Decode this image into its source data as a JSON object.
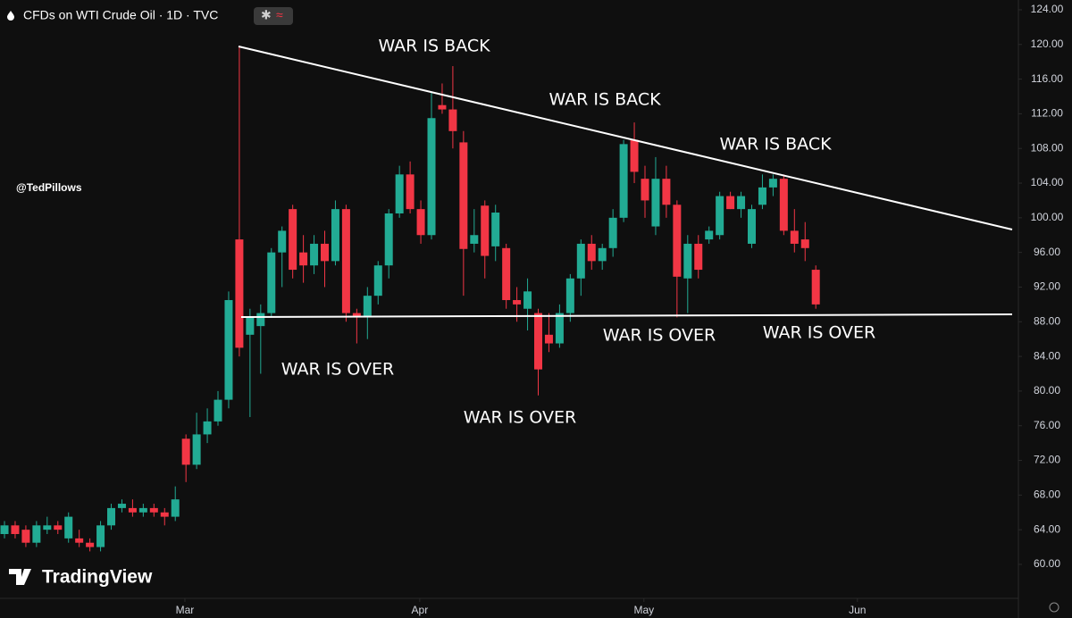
{
  "chart_data": {
    "type": "candlestick",
    "title": "CFDs on WTI Crude Oil · 1D · TVC",
    "watermark": "@TedPillows",
    "brand": "TradingView",
    "annotations": [
      "WAR IS BACK",
      "WAR IS BACK",
      "WAR IS BACK",
      "WAR IS OVER",
      "WAR IS OVER",
      "WAR IS OVER",
      "WAR IS OVER"
    ],
    "up_color": "#22ab94",
    "down_color": "#f23645",
    "x": [
      0,
      1,
      2,
      3,
      4,
      5,
      6,
      7,
      8,
      9,
      10,
      11,
      12,
      13,
      14,
      15,
      16,
      17,
      18,
      19,
      20,
      21,
      22,
      23,
      24,
      25,
      26,
      27,
      28,
      29,
      30,
      31,
      32,
      33,
      34,
      35,
      36,
      37,
      38,
      39,
      40,
      41,
      42,
      43,
      44,
      45,
      46,
      47,
      48,
      49,
      50,
      51,
      52,
      53,
      54,
      55,
      56,
      57,
      58,
      59,
      60,
      61,
      62,
      63,
      64,
      65,
      66,
      67,
      68,
      69,
      70,
      71,
      72,
      73,
      74,
      75,
      76
    ],
    "open": [
      63.5,
      64.5,
      64,
      62.5,
      64,
      64.5,
      63,
      63,
      62.5,
      62,
      64.5,
      66.5,
      66.5,
      66,
      66.5,
      66,
      65.5,
      74.5,
      71.5,
      75,
      76.5,
      79,
      97.5,
      86.5,
      87.5,
      89,
      96,
      101,
      96,
      94.5,
      97,
      95,
      101,
      89,
      88.5,
      91,
      94.5,
      100.5,
      105,
      101,
      98,
      113,
      112.5,
      108.7,
      97,
      101.4,
      96.7,
      96.5,
      90.5,
      89.5,
      89,
      86.5,
      85.5,
      89,
      93,
      97,
      95,
      96.5,
      100,
      109,
      104.5,
      99,
      104.5,
      101.5,
      93,
      97,
      97.5,
      98,
      102.5,
      101,
      97,
      101.5,
      103.5,
      104.5,
      98.5,
      97.5,
      94
    ],
    "high": [
      65,
      65,
      64.5,
      65,
      65.5,
      65,
      66,
      64,
      63,
      65,
      67,
      67.5,
      67.5,
      67,
      67,
      66.5,
      69,
      75,
      77.5,
      78,
      80,
      91.5,
      119.8,
      89.5,
      90,
      96.5,
      99,
      101.5,
      98,
      98,
      98.5,
      102,
      101.5,
      89.5,
      92,
      95,
      101,
      106,
      106.5,
      102,
      114.5,
      115.5,
      117.5,
      110,
      101,
      102,
      101.5,
      97,
      92,
      93,
      89.5,
      89,
      90,
      93.5,
      97.5,
      98,
      97,
      101,
      109,
      111,
      106,
      107,
      106,
      102,
      98,
      98,
      99,
      103,
      103,
      103,
      101.5,
      105,
      105,
      105,
      101,
      99.5,
      94.5
    ],
    "low": [
      63,
      63,
      62,
      62,
      63.5,
      63.5,
      62.5,
      62,
      61.5,
      61.5,
      64,
      66,
      65.5,
      65.5,
      65.5,
      64.5,
      65,
      69.5,
      71,
      74,
      76,
      78,
      84,
      77,
      82,
      88.5,
      92,
      93,
      92.5,
      93.5,
      92,
      94.5,
      88,
      85.5,
      86,
      90,
      93,
      100,
      100.5,
      97,
      97.5,
      112,
      108,
      91,
      96,
      93,
      95,
      89.5,
      88,
      87,
      79.5,
      84.5,
      85,
      88,
      91,
      94,
      94,
      95.5,
      99.5,
      104,
      100,
      98,
      100,
      88.5,
      89,
      93,
      97,
      97.5,
      101,
      100,
      96.5,
      101,
      102.5,
      98,
      96,
      95,
      89.5
    ],
    "close": [
      64.5,
      63.5,
      62.5,
      64.5,
      64.5,
      64,
      65.5,
      62.5,
      62,
      64.5,
      66.5,
      67,
      66,
      66.5,
      66,
      65.5,
      67.5,
      71.5,
      75,
      76.5,
      79,
      90.5,
      85,
      88.5,
      89,
      96,
      98.5,
      94,
      94.5,
      97,
      95,
      101,
      89,
      88.5,
      91,
      94.5,
      100.5,
      105,
      101,
      98,
      111.5,
      112.5,
      110,
      96.4,
      98,
      95.6,
      100.6,
      90.5,
      90,
      91.5,
      82.5,
      85.5,
      89,
      93,
      97,
      95,
      96.5,
      100,
      108.5,
      105.3,
      102,
      104.5,
      101.5,
      93.2,
      97,
      94,
      98.5,
      102.5,
      101,
      102.5,
      101,
      103.5,
      104.5,
      98.5,
      97,
      96.5,
      90
    ],
    "xlim": [
      -0.42,
      94.98
    ],
    "xticks": [
      {
        "value": 16.9,
        "label": "Mar"
      },
      {
        "value": 38.9,
        "label": "Apr"
      },
      {
        "value": 59.9,
        "label": "May"
      },
      {
        "value": 79.9,
        "label": "Jun"
      }
    ],
    "ylim": [
      56.08,
      125.13
    ],
    "yticks": [
      {
        "value": 60,
        "label": "60.00"
      },
      {
        "value": 64,
        "label": "64.00"
      },
      {
        "value": 68,
        "label": "68.00"
      },
      {
        "value": 72,
        "label": "72.00"
      },
      {
        "value": 76,
        "label": "76.00"
      },
      {
        "value": 80,
        "label": "80.00"
      },
      {
        "value": 84,
        "label": "84.00"
      },
      {
        "value": 88,
        "label": "88.00"
      },
      {
        "value": 92,
        "label": "92.00"
      },
      {
        "value": 96,
        "label": "96.00"
      },
      {
        "value": 100,
        "label": "100.00"
      },
      {
        "value": 104,
        "label": "104.00"
      },
      {
        "value": 108,
        "label": "108.00"
      },
      {
        "value": 112,
        "label": "112.00"
      },
      {
        "value": 116,
        "label": "116.00"
      },
      {
        "value": 120,
        "label": "120.00"
      },
      {
        "value": 124,
        "label": "124.00"
      }
    ],
    "grid": false
  }
}
